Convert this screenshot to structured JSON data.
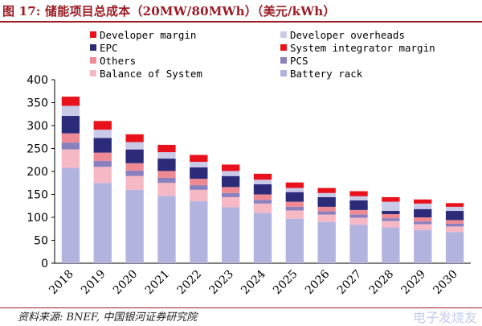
{
  "header": {
    "title": "图 17:  储能项目总成本（20MW/80MWh）（美元/kWh）"
  },
  "footer": {
    "source": "资料来源:  BNEF, 中国银河证券研究院",
    "watermark": "电子发烧友"
  },
  "chart_data": {
    "type": "bar",
    "stacked": true,
    "title": "储能项目总成本（20MW/80MWh）（美元/kWh）",
    "xlabel": "",
    "ylabel": "",
    "ylim": [
      0,
      400
    ],
    "yticks": [
      0,
      50,
      100,
      150,
      200,
      250,
      300,
      350,
      400
    ],
    "grid": false,
    "legend_position": "top",
    "categories": [
      "2018",
      "2019",
      "2020",
      "2021",
      "2022",
      "2023",
      "2024",
      "2025",
      "2026",
      "2027",
      "2028",
      "2029",
      "2030"
    ],
    "series": [
      {
        "name": "Battery rack",
        "color": "#b3b3e0",
        "values": [
          208,
          175,
          160,
          147,
          135,
          122,
          110,
          97,
          90,
          84,
          78,
          72,
          68
        ]
      },
      {
        "name": "Balance of System",
        "color": "#f7b8c6",
        "values": [
          40,
          35,
          30,
          28,
          25,
          22,
          20,
          18,
          16,
          15,
          14,
          13,
          12
        ]
      },
      {
        "name": "PCS",
        "color": "#8b80bf",
        "values": [
          15,
          13,
          12,
          11,
          10,
          9,
          8,
          8,
          7,
          7,
          6,
          6,
          6
        ]
      },
      {
        "name": "Others",
        "color": "#ef8a94",
        "values": [
          20,
          18,
          16,
          15,
          14,
          13,
          12,
          11,
          10,
          10,
          9,
          9,
          8
        ]
      },
      {
        "name": "EPC",
        "color": "#2b2b7a",
        "values": [
          38,
          32,
          30,
          27,
          25,
          24,
          22,
          21,
          21,
          21,
          7,
          18,
          20
        ]
      },
      {
        "name": "Developer overheads",
        "color": "#c9c9e8",
        "values": [
          22,
          18,
          16,
          14,
          12,
          11,
          10,
          9,
          9,
          9,
          20,
          12,
          9
        ]
      },
      {
        "name": "Developer margin",
        "color": "#e8111c",
        "values": [
          20,
          19,
          17,
          16,
          15,
          14,
          13,
          12,
          11,
          11,
          10,
          9,
          8
        ]
      },
      {
        "name": "System integrator margin",
        "color": "#e8111c",
        "values": [
          0,
          0,
          0,
          0,
          0,
          0,
          0,
          0,
          0,
          0,
          0,
          0,
          0
        ]
      }
    ],
    "legend": [
      {
        "label": "Developer margin",
        "color": "#e8111c"
      },
      {
        "label": "Developer overheads",
        "color": "#c9c9e8"
      },
      {
        "label": "EPC",
        "color": "#2b2b7a"
      },
      {
        "label": "System integrator margin",
        "color": "#e8111c"
      },
      {
        "label": "Others",
        "color": "#ef8a94"
      },
      {
        "label": "PCS",
        "color": "#8b80bf"
      },
      {
        "label": "Balance of System",
        "color": "#f7b8c6"
      },
      {
        "label": "Battery rack",
        "color": "#b3b3e0"
      }
    ]
  }
}
